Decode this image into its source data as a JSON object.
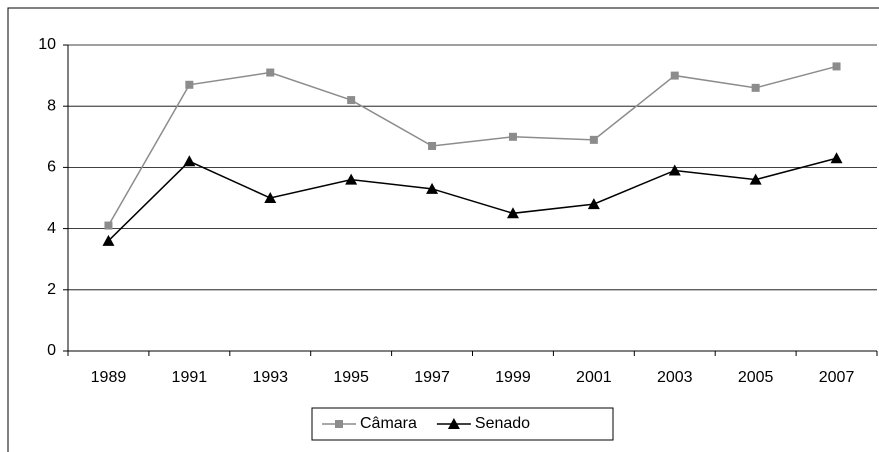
{
  "chart_data": {
    "type": "line",
    "categories": [
      "1989",
      "1991",
      "1993",
      "1995",
      "1997",
      "1999",
      "2001",
      "2003",
      "2005",
      "2007"
    ],
    "series": [
      {
        "name": "Câmara",
        "color": "#8c8c8c",
        "marker": "square",
        "values": [
          4.1,
          8.7,
          9.1,
          8.2,
          6.7,
          7.0,
          6.9,
          9.0,
          8.6,
          9.3
        ]
      },
      {
        "name": "Senado",
        "color": "#000000",
        "marker": "triangle",
        "values": [
          3.6,
          6.2,
          5.0,
          5.6,
          5.3,
          4.5,
          4.8,
          5.9,
          5.6,
          6.3
        ]
      }
    ],
    "ylim": [
      0,
      10
    ],
    "yticks": [
      0,
      2,
      4,
      6,
      8,
      10
    ],
    "grid": true,
    "legend": "bottom"
  }
}
